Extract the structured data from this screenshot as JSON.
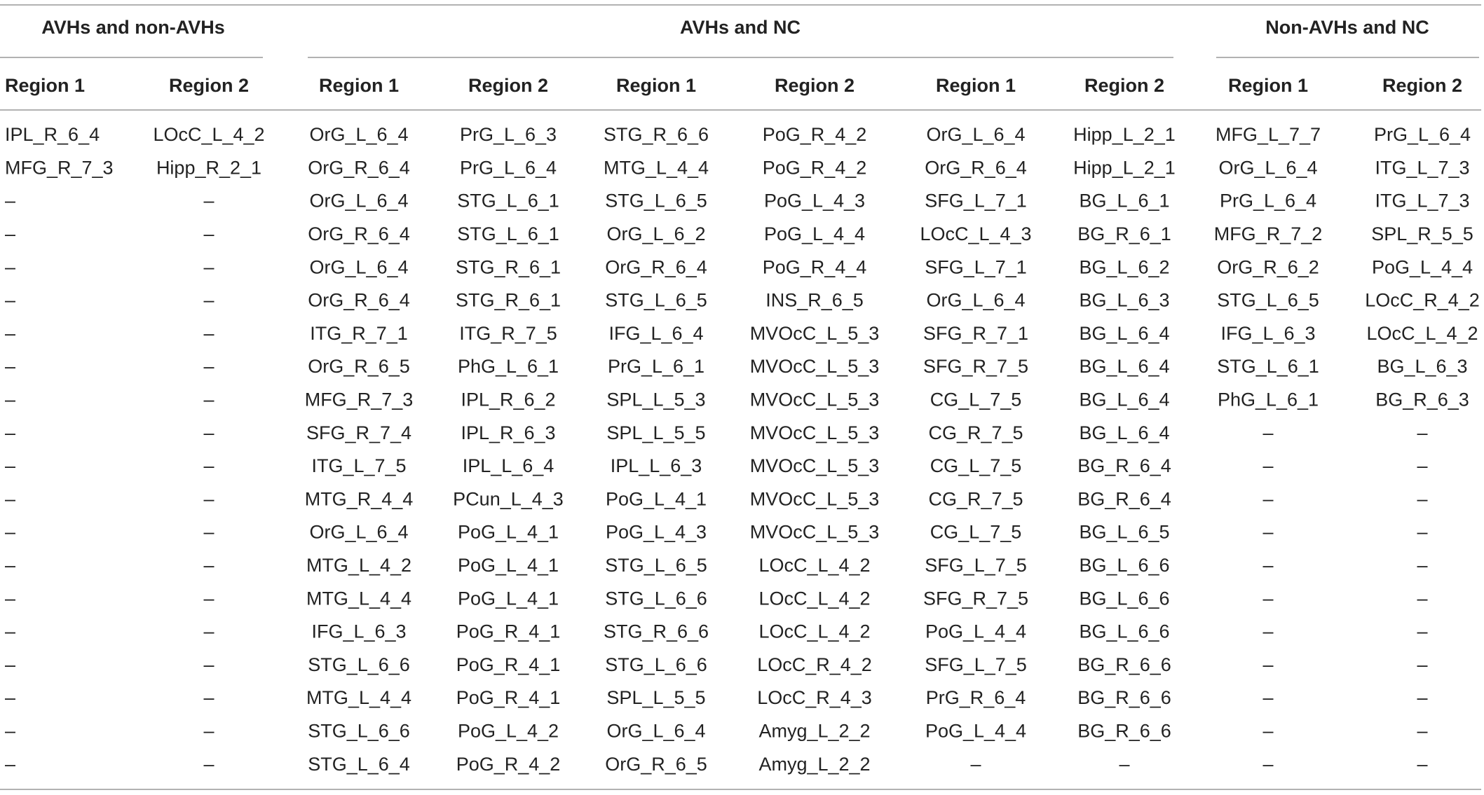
{
  "table": {
    "groups": [
      "AVHs and non-AVHs",
      "AVHs and NC",
      "Non-AVHs and NC"
    ],
    "columns": [
      "Region 1",
      "Region 2",
      "Region 1",
      "Region 2",
      "Region 1",
      "Region 2",
      "Region 1",
      "Region 2",
      "Region 1",
      "Region 2"
    ],
    "rows": [
      [
        "IPL_R_6_4",
        "LOcC_L_4_2",
        "OrG_L_6_4",
        "PrG_L_6_3",
        "STG_R_6_6",
        "PoG_R_4_2",
        "OrG_L_6_4",
        "Hipp_L_2_1",
        "MFG_L_7_7",
        "PrG_L_6_4"
      ],
      [
        "MFG_R_7_3",
        "Hipp_R_2_1",
        "OrG_R_6_4",
        "PrG_L_6_4",
        "MTG_L_4_4",
        "PoG_R_4_2",
        "OrG_R_6_4",
        "Hipp_L_2_1",
        "OrG_L_6_4",
        "ITG_L_7_3"
      ],
      [
        "–",
        "–",
        "OrG_L_6_4",
        "STG_L_6_1",
        "STG_L_6_5",
        "PoG_L_4_3",
        "SFG_L_7_1",
        "BG_L_6_1",
        "PrG_L_6_4",
        "ITG_L_7_3"
      ],
      [
        "–",
        "–",
        "OrG_R_6_4",
        "STG_L_6_1",
        "OrG_L_6_2",
        "PoG_L_4_4",
        "LOcC_L_4_3",
        "BG_R_6_1",
        "MFG_R_7_2",
        "SPL_R_5_5"
      ],
      [
        "–",
        "–",
        "OrG_L_6_4",
        "STG_R_6_1",
        "OrG_R_6_4",
        "PoG_R_4_4",
        "SFG_L_7_1",
        "BG_L_6_2",
        "OrG_R_6_2",
        "PoG_L_4_4"
      ],
      [
        "–",
        "–",
        "OrG_R_6_4",
        "STG_R_6_1",
        "STG_L_6_5",
        "INS_R_6_5",
        "OrG_L_6_4",
        "BG_L_6_3",
        "STG_L_6_5",
        "LOcC_R_4_2"
      ],
      [
        "–",
        "–",
        "ITG_R_7_1",
        "ITG_R_7_5",
        "IFG_L_6_4",
        "MVOcC_L_5_3",
        "SFG_R_7_1",
        "BG_L_6_4",
        "IFG_L_6_3",
        "LOcC_L_4_2"
      ],
      [
        "–",
        "–",
        "OrG_R_6_5",
        "PhG_L_6_1",
        "PrG_L_6_1",
        "MVOcC_L_5_3",
        "SFG_R_7_5",
        "BG_L_6_4",
        "STG_L_6_1",
        "BG_L_6_3"
      ],
      [
        "–",
        "–",
        "MFG_R_7_3",
        "IPL_R_6_2",
        "SPL_L_5_3",
        "MVOcC_L_5_3",
        "CG_L_7_5",
        "BG_L_6_4",
        "PhG_L_6_1",
        "BG_R_6_3"
      ],
      [
        "–",
        "–",
        "SFG_R_7_4",
        "IPL_R_6_3",
        "SPL_L_5_5",
        "MVOcC_L_5_3",
        "CG_R_7_5",
        "BG_L_6_4",
        "–",
        "–"
      ],
      [
        "–",
        "–",
        "ITG_L_7_5",
        "IPL_L_6_4",
        "IPL_L_6_3",
        "MVOcC_L_5_3",
        "CG_L_7_5",
        "BG_R_6_4",
        "–",
        "–"
      ],
      [
        "–",
        "–",
        "MTG_R_4_4",
        "PCun_L_4_3",
        "PoG_L_4_1",
        "MVOcC_L_5_3",
        "CG_R_7_5",
        "BG_R_6_4",
        "–",
        "–"
      ],
      [
        "–",
        "–",
        "OrG_L_6_4",
        "PoG_L_4_1",
        "PoG_L_4_3",
        "MVOcC_L_5_3",
        "CG_L_7_5",
        "BG_L_6_5",
        "–",
        "–"
      ],
      [
        "–",
        "–",
        "MTG_L_4_2",
        "PoG_L_4_1",
        "STG_L_6_5",
        "LOcC_L_4_2",
        "SFG_L_7_5",
        "BG_L_6_6",
        "–",
        "–"
      ],
      [
        "–",
        "–",
        "MTG_L_4_4",
        "PoG_L_4_1",
        "STG_L_6_6",
        "LOcC_L_4_2",
        "SFG_R_7_5",
        "BG_L_6_6",
        "–",
        "–"
      ],
      [
        "–",
        "–",
        "IFG_L_6_3",
        "PoG_R_4_1",
        "STG_R_6_6",
        "LOcC_L_4_2",
        "PoG_L_4_4",
        "BG_L_6_6",
        "–",
        "–"
      ],
      [
        "–",
        "–",
        "STG_L_6_6",
        "PoG_R_4_1",
        "STG_L_6_6",
        "LOcC_R_4_2",
        "SFG_L_7_5",
        "BG_R_6_6",
        "–",
        "–"
      ],
      [
        "–",
        "–",
        "MTG_L_4_4",
        "PoG_R_4_1",
        "SPL_L_5_5",
        "LOcC_R_4_3",
        "PrG_R_6_4",
        "BG_R_6_6",
        "–",
        "–"
      ],
      [
        "–",
        "–",
        "STG_L_6_6",
        "PoG_L_4_2",
        "OrG_L_6_4",
        "Amyg_L_2_2",
        "PoG_L_4_4",
        "BG_R_6_6",
        "–",
        "–"
      ],
      [
        "–",
        "–",
        "STG_L_6_4",
        "PoG_R_4_2",
        "OrG_R_6_5",
        "Amyg_L_2_2",
        "–",
        "–",
        "–",
        "–"
      ]
    ]
  }
}
